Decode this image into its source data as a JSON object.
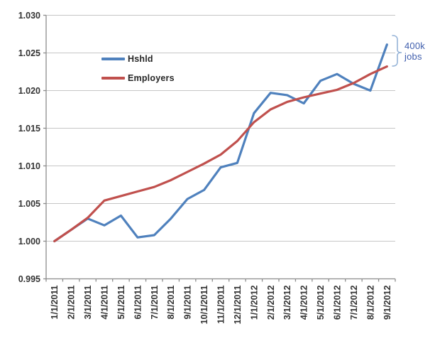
{
  "chart_data": {
    "type": "line",
    "categories": [
      "1/1/2011",
      "2/1/2011",
      "3/1/2011",
      "4/1/2011",
      "5/1/2011",
      "6/1/2011",
      "7/1/2011",
      "8/1/2011",
      "9/1/2011",
      "10/1/2011",
      "11/1/2011",
      "12/1/2011",
      "1/1/2012",
      "2/1/2012",
      "3/1/2012",
      "4/1/2012",
      "5/1/2012",
      "6/1/2012",
      "7/1/2012",
      "8/1/2012",
      "9/1/2012"
    ],
    "series": [
      {
        "name": "Hshld",
        "color": "#4F81BD",
        "values": [
          1.0,
          1.0015,
          1.003,
          1.0021,
          1.0034,
          1.0005,
          1.0008,
          1.003,
          1.0056,
          1.0068,
          1.0098,
          1.0104,
          1.017,
          1.0197,
          1.0194,
          1.0183,
          1.0213,
          1.0222,
          1.0209,
          1.02,
          1.0261
        ]
      },
      {
        "name": "Employers",
        "color": "#C0504D",
        "values": [
          1.0,
          1.0015,
          1.0031,
          1.0054,
          1.006,
          1.0066,
          1.0072,
          1.0081,
          1.0092,
          1.0103,
          1.0115,
          1.0133,
          1.0158,
          1.0175,
          1.0185,
          1.0191,
          1.0196,
          1.0201,
          1.021,
          1.0222,
          1.0232
        ]
      }
    ],
    "title": "",
    "xlabel": "",
    "ylabel": "",
    "ylim": [
      0.995,
      1.03
    ],
    "ytick_step": 0.005,
    "yticks": [
      "0.995",
      "1.000",
      "1.005",
      "1.010",
      "1.015",
      "1.020",
      "1.025",
      "1.030"
    ],
    "grid": "horizontal",
    "grid_color": "#C6C6C6",
    "axis_color": "#8C8C8C",
    "label_color": "#333333",
    "legend_position": "inside-top-left",
    "annotation": {
      "lines": [
        "400k",
        "jobs"
      ],
      "color": "#3F5EAD",
      "brace_color": "#95B3D7",
      "points_at": "gap between Hshld and Employers at 9/1/2012"
    }
  }
}
